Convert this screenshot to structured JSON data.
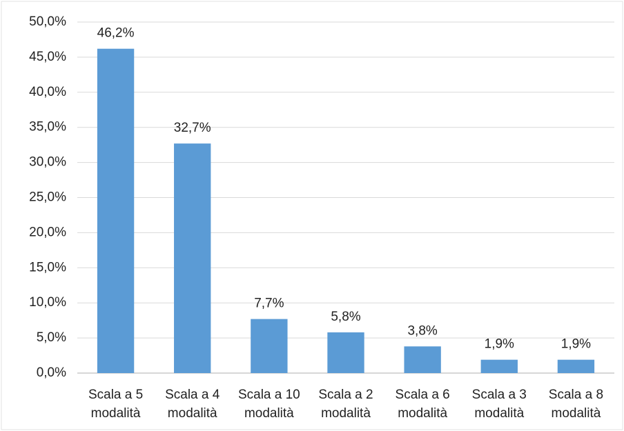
{
  "chart_data": {
    "type": "bar",
    "categories": [
      "Scala a 5 modalità",
      "Scala a 4 modalità",
      "Scala a 10 modalità",
      "Scala a 2 modalità",
      "Scala a 6 modalità",
      "Scala a 3 modalità",
      "Scala a 8 modalità"
    ],
    "values": [
      46.2,
      32.7,
      7.7,
      5.8,
      3.8,
      1.9,
      1.9
    ],
    "value_labels": [
      "46,2%",
      "32,7%",
      "7,7%",
      "5,8%",
      "3,8%",
      "1,9%",
      "1,9%"
    ],
    "color": "#5b9bd5",
    "ylim": [
      0,
      50
    ],
    "yticks": [
      {
        "value": 0,
        "label": "0,0%"
      },
      {
        "value": 5,
        "label": "5,0%"
      },
      {
        "value": 10,
        "label": "10,0%"
      },
      {
        "value": 15,
        "label": "15,0%"
      },
      {
        "value": 20,
        "label": "20,0%"
      },
      {
        "value": 25,
        "label": "25,0%"
      },
      {
        "value": 30,
        "label": "30,0%"
      },
      {
        "value": 35,
        "label": "35,0%"
      },
      {
        "value": 40,
        "label": "40,0%"
      },
      {
        "value": 45,
        "label": "45,0%"
      },
      {
        "value": 50,
        "label": "50,0%"
      }
    ],
    "grid": true
  }
}
